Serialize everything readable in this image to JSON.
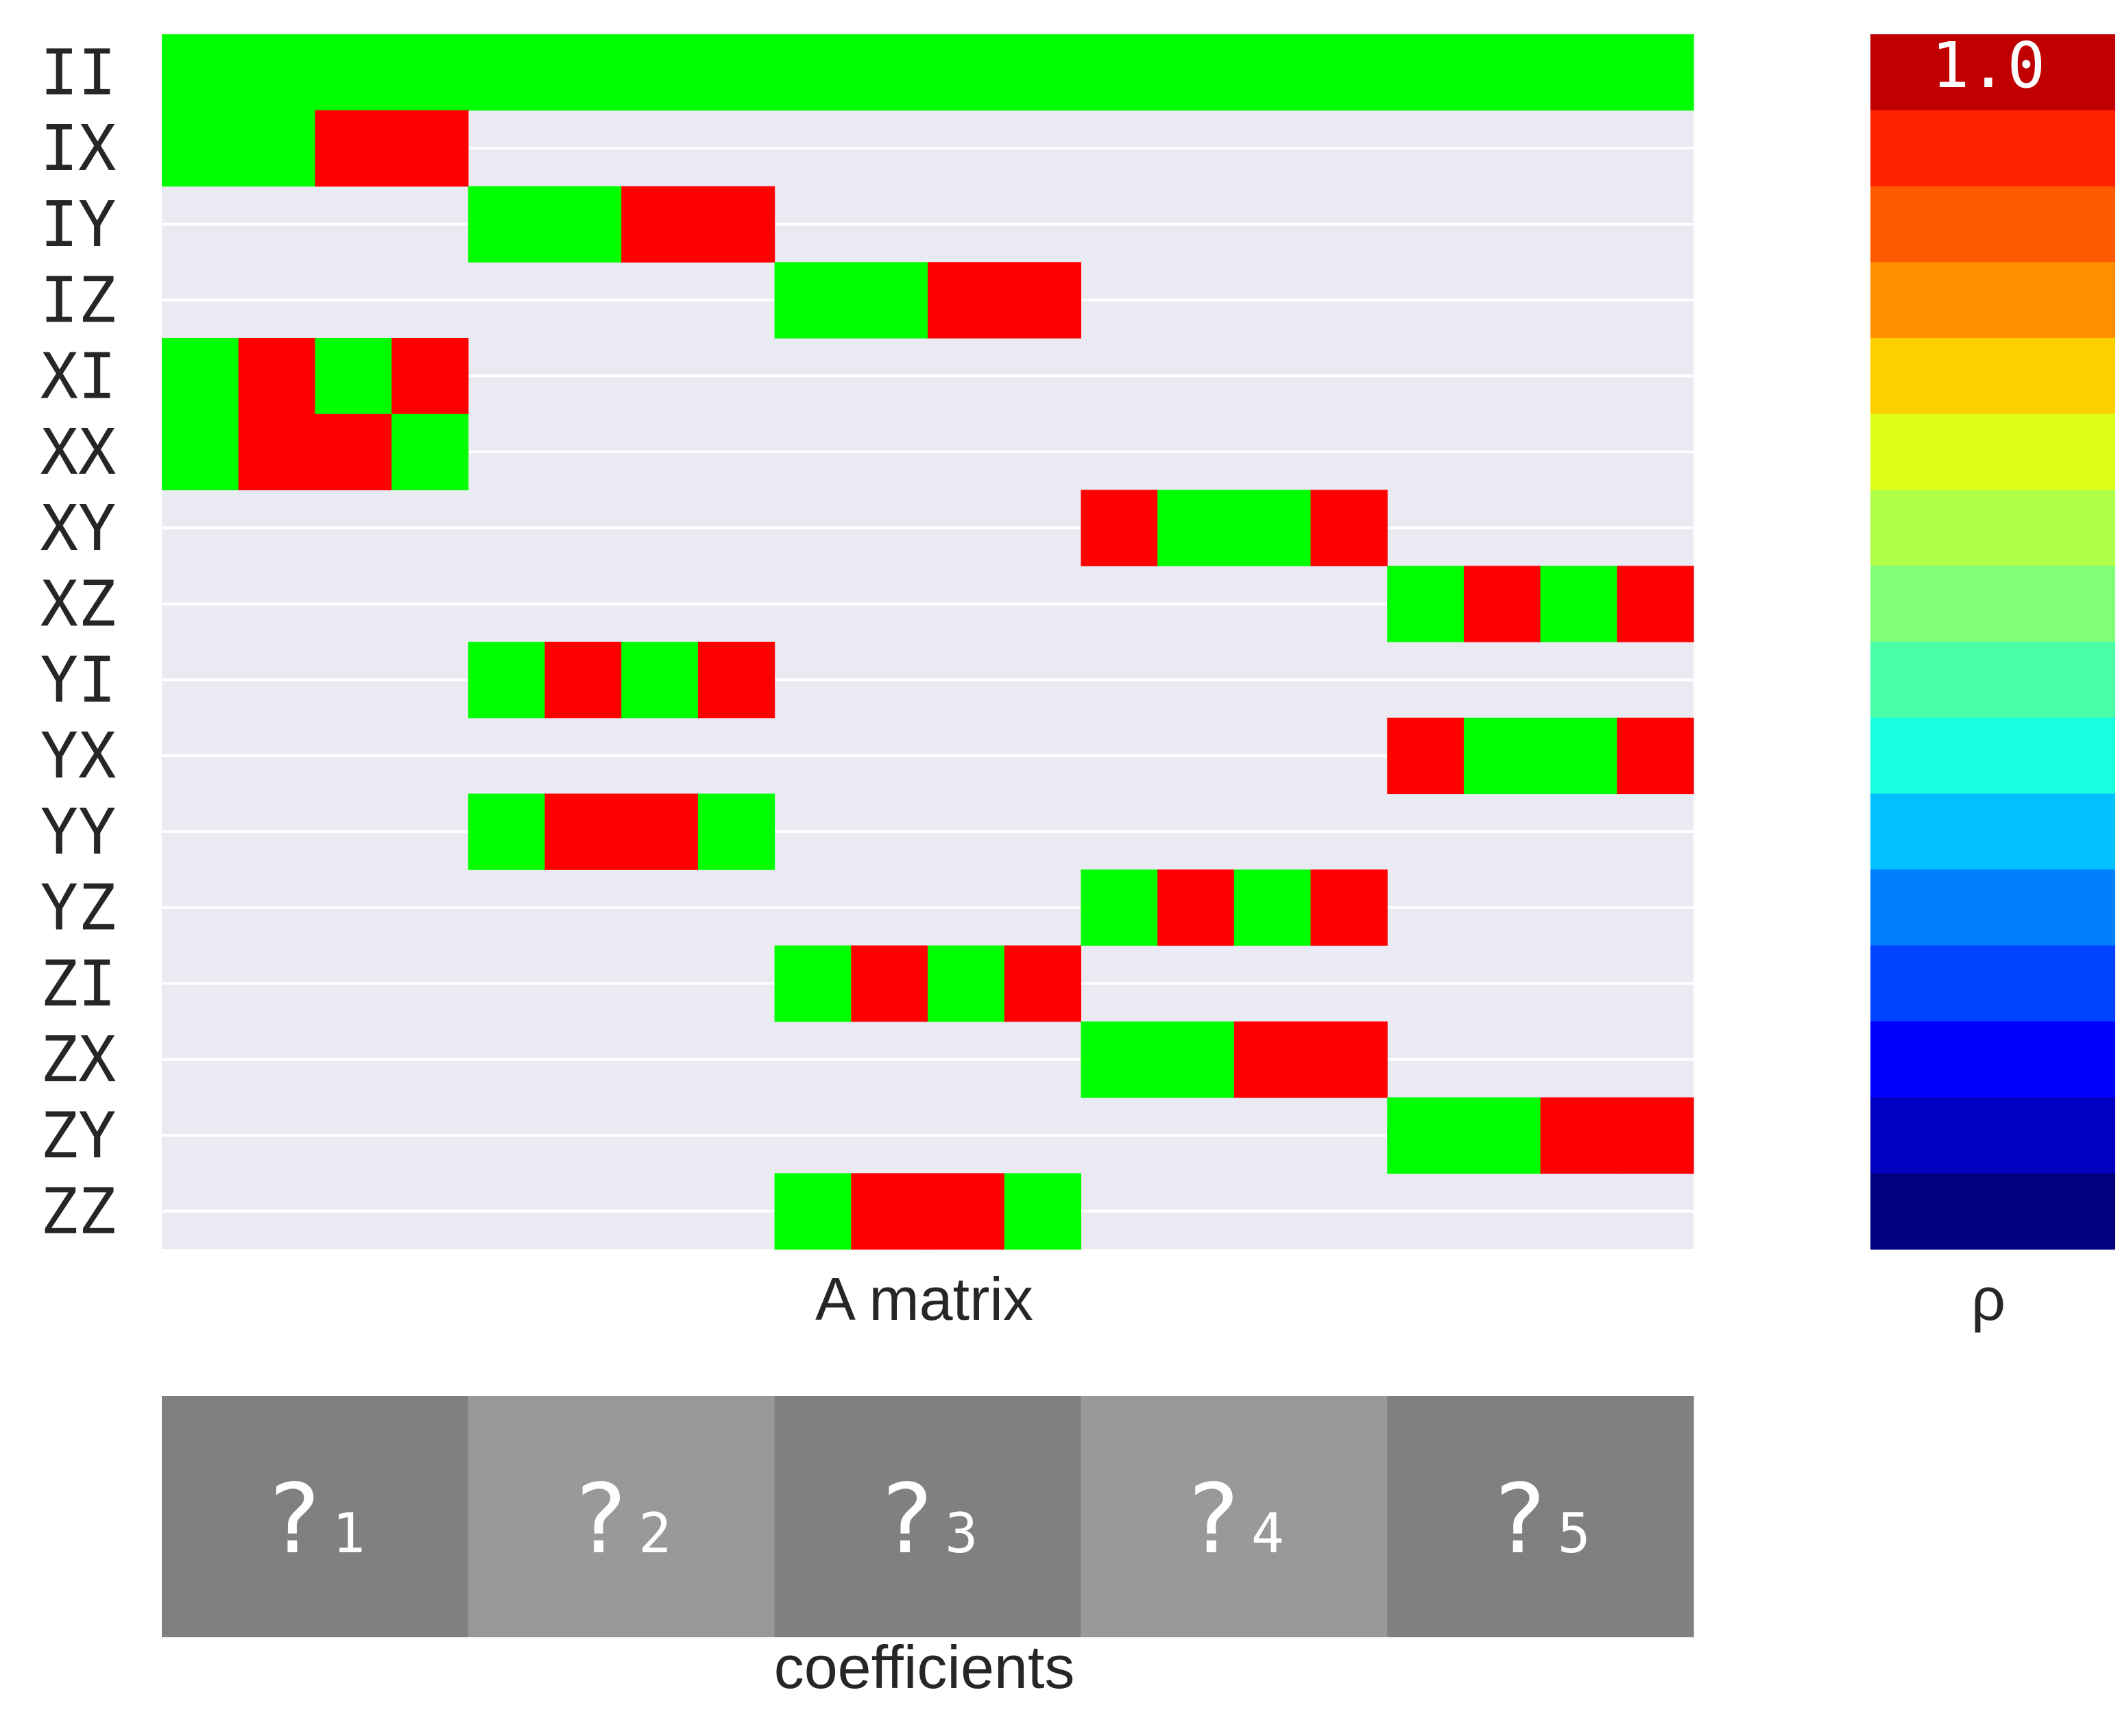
{
  "chart_data": [
    {
      "type": "heatmap",
      "name": "A matrix",
      "xlabel": "A matrix",
      "row_labels": [
        "II",
        "IX",
        "IY",
        "IZ",
        "XI",
        "XX",
        "XY",
        "XZ",
        "YI",
        "YX",
        "YY",
        "YZ",
        "ZI",
        "ZX",
        "ZY",
        "ZZ"
      ],
      "n_columns": 20,
      "legend": {
        "1": "green (+1)",
        "-1": "red (-1)",
        "0": "blank"
      },
      "colors": {
        "positive": "#00ff00",
        "negative": "#ff0000",
        "background": "#eaeaf2",
        "grid": "#ffffff"
      },
      "matrix": [
        [
          1,
          1,
          1,
          1,
          1,
          1,
          1,
          1,
          1,
          1,
          1,
          1,
          1,
          1,
          1,
          1,
          1,
          1,
          1,
          1
        ],
        [
          1,
          1,
          -1,
          -1,
          0,
          0,
          0,
          0,
          0,
          0,
          0,
          0,
          0,
          0,
          0,
          0,
          0,
          0,
          0,
          0
        ],
        [
          0,
          0,
          0,
          0,
          1,
          1,
          -1,
          -1,
          0,
          0,
          0,
          0,
          0,
          0,
          0,
          0,
          0,
          0,
          0,
          0
        ],
        [
          0,
          0,
          0,
          0,
          0,
          0,
          0,
          0,
          1,
          1,
          -1,
          -1,
          0,
          0,
          0,
          0,
          0,
          0,
          0,
          0
        ],
        [
          1,
          -1,
          1,
          -1,
          0,
          0,
          0,
          0,
          0,
          0,
          0,
          0,
          0,
          0,
          0,
          0,
          0,
          0,
          0,
          0
        ],
        [
          1,
          -1,
          -1,
          1,
          0,
          0,
          0,
          0,
          0,
          0,
          0,
          0,
          0,
          0,
          0,
          0,
          0,
          0,
          0,
          0
        ],
        [
          0,
          0,
          0,
          0,
          0,
          0,
          0,
          0,
          0,
          0,
          0,
          0,
          -1,
          1,
          1,
          -1,
          0,
          0,
          0,
          0
        ],
        [
          0,
          0,
          0,
          0,
          0,
          0,
          0,
          0,
          0,
          0,
          0,
          0,
          0,
          0,
          0,
          0,
          1,
          -1,
          1,
          -1
        ],
        [
          0,
          0,
          0,
          0,
          1,
          -1,
          1,
          -1,
          0,
          0,
          0,
          0,
          0,
          0,
          0,
          0,
          0,
          0,
          0,
          0
        ],
        [
          0,
          0,
          0,
          0,
          0,
          0,
          0,
          0,
          0,
          0,
          0,
          0,
          0,
          0,
          0,
          0,
          -1,
          1,
          1,
          -1
        ],
        [
          0,
          0,
          0,
          0,
          1,
          -1,
          -1,
          1,
          0,
          0,
          0,
          0,
          0,
          0,
          0,
          0,
          0,
          0,
          0,
          0
        ],
        [
          0,
          0,
          0,
          0,
          0,
          0,
          0,
          0,
          0,
          0,
          0,
          0,
          1,
          -1,
          1,
          -1,
          0,
          0,
          0,
          0
        ],
        [
          0,
          0,
          0,
          0,
          0,
          0,
          0,
          0,
          1,
          -1,
          1,
          -1,
          0,
          0,
          0,
          0,
          0,
          0,
          0,
          0
        ],
        [
          0,
          0,
          0,
          0,
          0,
          0,
          0,
          0,
          0,
          0,
          0,
          0,
          1,
          1,
          -1,
          -1,
          0,
          0,
          0,
          0
        ],
        [
          0,
          0,
          0,
          0,
          0,
          0,
          0,
          0,
          0,
          0,
          0,
          0,
          0,
          0,
          0,
          0,
          1,
          1,
          -1,
          -1
        ],
        [
          0,
          0,
          0,
          0,
          0,
          0,
          0,
          0,
          1,
          -1,
          -1,
          1,
          0,
          0,
          0,
          0,
          0,
          0,
          0,
          0
        ]
      ]
    },
    {
      "type": "heatmap",
      "name": "coefficients",
      "xlabel": "coefficients",
      "cells": [
        {
          "symbol": "?",
          "subscript": "1",
          "color": "#808080"
        },
        {
          "symbol": "?",
          "subscript": "2",
          "color": "#999999"
        },
        {
          "symbol": "?",
          "subscript": "3",
          "color": "#808080"
        },
        {
          "symbol": "?",
          "subscript": "4",
          "color": "#999999"
        },
        {
          "symbol": "?",
          "subscript": "5",
          "color": "#808080"
        }
      ]
    },
    {
      "type": "heatmap",
      "name": "colorbar",
      "xlabel": "ρ",
      "top_label": "1.0",
      "colormap": "jet",
      "colors_top_to_bottom": [
        "#c00000",
        "#ff2200",
        "#ff5a00",
        "#ff9000",
        "#ffd000",
        "#e0ff18",
        "#b0ff48",
        "#80ff78",
        "#48ffa8",
        "#18ffe0",
        "#00c0ff",
        "#0080ff",
        "#0044ff",
        "#0000ff",
        "#0000c0",
        "#000080"
      ]
    }
  ]
}
